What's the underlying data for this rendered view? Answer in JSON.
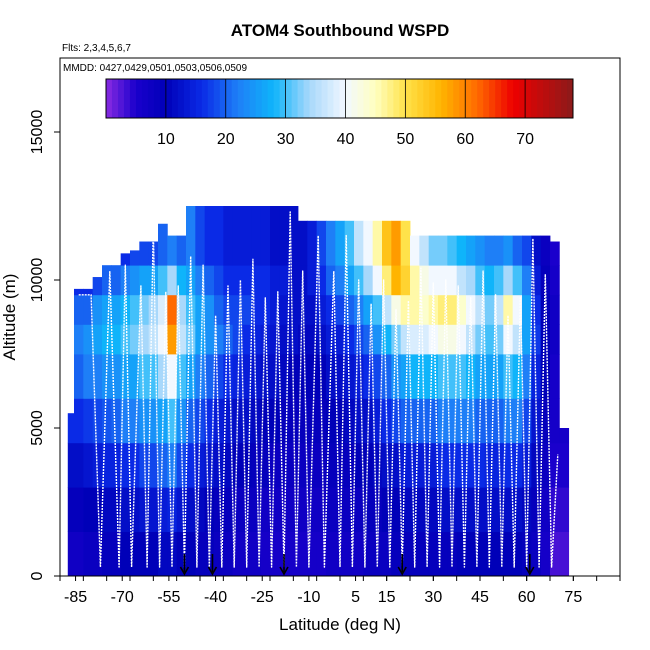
{
  "chart_data": {
    "type": "heatmap",
    "title": "ATOM4 Southbound WSPD",
    "flights_text": "Flts: 2,3,4,5,6,7",
    "dates_text": "MMDD: 0427,0429,0501,0503,0506,0509",
    "xlabel": "Latitude (deg N)",
    "ylabel": "Altitude (m)",
    "xlim": [
      -90,
      90
    ],
    "ylim": [
      0,
      17500
    ],
    "x_ticks": [
      -85,
      -70,
      -55,
      -40,
      -25,
      -10,
      5,
      15,
      30,
      45,
      60,
      75
    ],
    "x_tick_labels": [
      "-85",
      "-70",
      "-55",
      "-40",
      "-25",
      "-10",
      "5",
      "15",
      "30",
      "45",
      "60",
      "75"
    ],
    "y_ticks": [
      0,
      5000,
      10000,
      15000
    ],
    "y_tick_labels": [
      "0",
      "5000",
      "10000",
      "15000"
    ],
    "colorbar": {
      "range": [
        0,
        78
      ],
      "ticks": [
        10,
        20,
        30,
        40,
        50,
        60,
        70
      ],
      "tick_labels": [
        "10",
        "20",
        "30",
        "40",
        "50",
        "60",
        "70"
      ],
      "stops": [
        {
          "v": 0,
          "c": "#8a2be2"
        },
        {
          "v": 5,
          "c": "#1a00cc"
        },
        {
          "v": 10,
          "c": "#0000b8"
        },
        {
          "v": 16,
          "c": "#0a2ae6"
        },
        {
          "v": 22,
          "c": "#1e7ff7"
        },
        {
          "v": 28,
          "c": "#0fb4fa"
        },
        {
          "v": 34,
          "c": "#a8d8fb"
        },
        {
          "v": 40,
          "c": "#f2f8ff"
        },
        {
          "v": 45,
          "c": "#ffffc0"
        },
        {
          "v": 50,
          "c": "#ffe24a"
        },
        {
          "v": 56,
          "c": "#ffb400"
        },
        {
          "v": 62,
          "c": "#ff6a00"
        },
        {
          "v": 68,
          "c": "#ee0000"
        },
        {
          "v": 78,
          "c": "#8b1a1a"
        }
      ]
    },
    "columns": [
      {
        "lat": -86,
        "top": 5500,
        "v": [
          7,
          9,
          12,
          16,
          20,
          22,
          20,
          16,
          12
        ]
      },
      {
        "lat": -84,
        "top": 9700,
        "v": [
          7,
          9,
          12,
          16,
          20,
          22,
          20,
          16,
          12
        ]
      },
      {
        "lat": -81,
        "top": 9700,
        "v": [
          8,
          10,
          13,
          17,
          22,
          24,
          20,
          16,
          12
        ]
      },
      {
        "lat": -78,
        "top": 10100,
        "v": [
          8,
          10,
          14,
          18,
          22,
          26,
          24,
          18,
          14
        ]
      },
      {
        "lat": -75,
        "top": 10500,
        "v": [
          9,
          11,
          15,
          19,
          24,
          28,
          26,
          20,
          15
        ]
      },
      {
        "lat": -72,
        "top": 10500,
        "v": [
          9,
          11,
          15,
          20,
          24,
          28,
          26,
          20,
          15
        ]
      },
      {
        "lat": -69,
        "top": 10900,
        "v": [
          10,
          12,
          16,
          22,
          26,
          30,
          28,
          22,
          16
        ]
      },
      {
        "lat": -66,
        "top": 11000,
        "v": [
          10,
          12,
          16,
          22,
          26,
          32,
          30,
          24,
          18
        ]
      },
      {
        "lat": -63,
        "top": 11300,
        "v": [
          10,
          13,
          18,
          24,
          30,
          34,
          32,
          26,
          18
        ]
      },
      {
        "lat": -60,
        "top": 11300,
        "v": [
          10,
          13,
          18,
          24,
          30,
          36,
          34,
          26,
          18
        ]
      },
      {
        "lat": -57,
        "top": 11900,
        "v": [
          11,
          14,
          20,
          26,
          34,
          40,
          38,
          30,
          20
        ]
      },
      {
        "lat": -54,
        "top": 11500,
        "v": [
          11,
          15,
          22,
          30,
          40,
          58,
          62,
          34,
          22
        ]
      },
      {
        "lat": -51,
        "top": 11500,
        "v": [
          10,
          13,
          18,
          24,
          30,
          36,
          34,
          28,
          20
        ]
      },
      {
        "lat": -48,
        "top": 12500,
        "v": [
          10,
          12,
          16,
          20,
          26,
          32,
          30,
          26,
          22
        ]
      },
      {
        "lat": -45,
        "top": 12500,
        "v": [
          9,
          11,
          14,
          18,
          22,
          26,
          26,
          22,
          18
        ]
      },
      {
        "lat": -42,
        "top": 12500,
        "v": [
          9,
          10,
          13,
          16,
          20,
          24,
          24,
          20,
          16
        ]
      },
      {
        "lat": -39,
        "top": 12500,
        "v": [
          8,
          9,
          12,
          14,
          18,
          22,
          20,
          18,
          16
        ]
      },
      {
        "lat": -36,
        "top": 12500,
        "v": [
          8,
          9,
          11,
          13,
          16,
          20,
          18,
          16,
          14
        ]
      },
      {
        "lat": -33,
        "top": 12500,
        "v": [
          7,
          8,
          10,
          12,
          15,
          18,
          18,
          16,
          14
        ]
      },
      {
        "lat": -30,
        "top": 12500,
        "v": [
          7,
          8,
          10,
          12,
          14,
          16,
          18,
          16,
          14
        ]
      },
      {
        "lat": -27,
        "top": 12500,
        "v": [
          7,
          8,
          9,
          11,
          13,
          15,
          16,
          16,
          14
        ]
      },
      {
        "lat": -24,
        "top": 12500,
        "v": [
          6,
          7,
          9,
          10,
          12,
          14,
          16,
          16,
          14
        ]
      },
      {
        "lat": -21,
        "top": 12500,
        "v": [
          6,
          7,
          8,
          10,
          12,
          13,
          14,
          14,
          12
        ]
      },
      {
        "lat": -18,
        "top": 12500,
        "v": [
          6,
          7,
          8,
          9,
          11,
          12,
          13,
          14,
          12
        ]
      },
      {
        "lat": -15,
        "top": 12500,
        "v": [
          6,
          7,
          8,
          9,
          10,
          12,
          12,
          12,
          12
        ]
      },
      {
        "lat": -12,
        "top": 12000,
        "v": [
          6,
          7,
          8,
          9,
          10,
          11,
          12,
          12,
          12
        ]
      },
      {
        "lat": -9,
        "top": 12000,
        "v": [
          6,
          7,
          8,
          9,
          10,
          11,
          12,
          14,
          14
        ]
      },
      {
        "lat": -6,
        "top": 12000,
        "v": [
          6,
          7,
          8,
          9,
          10,
          12,
          14,
          16,
          18
        ]
      },
      {
        "lat": -3,
        "top": 12000,
        "v": [
          7,
          8,
          9,
          10,
          12,
          14,
          16,
          20,
          22
        ]
      },
      {
        "lat": 0,
        "top": 12000,
        "v": [
          7,
          8,
          9,
          10,
          12,
          14,
          18,
          22,
          26
        ]
      },
      {
        "lat": 3,
        "top": 12000,
        "v": [
          7,
          8,
          9,
          11,
          13,
          16,
          20,
          26,
          30
        ]
      },
      {
        "lat": 6,
        "top": 12000,
        "v": [
          7,
          8,
          10,
          12,
          14,
          18,
          22,
          30,
          36
        ]
      },
      {
        "lat": 9,
        "top": 12000,
        "v": [
          8,
          9,
          10,
          12,
          16,
          20,
          26,
          34,
          40
        ]
      },
      {
        "lat": 12,
        "top": 12000,
        "v": [
          8,
          9,
          11,
          14,
          18,
          24,
          30,
          40,
          46
        ]
      },
      {
        "lat": 15,
        "top": 12000,
        "v": [
          8,
          10,
          12,
          16,
          20,
          28,
          36,
          48,
          54
        ]
      },
      {
        "lat": 18,
        "top": 12000,
        "v": [
          9,
          10,
          12,
          18,
          24,
          32,
          42,
          56,
          58
        ]
      },
      {
        "lat": 21,
        "top": 12000,
        "v": [
          9,
          11,
          14,
          20,
          26,
          36,
          46,
          52,
          50
        ]
      },
      {
        "lat": 24,
        "top": 11500,
        "v": [
          9,
          11,
          14,
          20,
          28,
          38,
          46,
          46,
          40
        ]
      },
      {
        "lat": 27,
        "top": 11500,
        "v": [
          9,
          11,
          14,
          20,
          28,
          38,
          44,
          42,
          36
        ]
      },
      {
        "lat": 30,
        "top": 11500,
        "v": [
          9,
          11,
          14,
          20,
          28,
          40,
          46,
          40,
          32
        ]
      },
      {
        "lat": 33,
        "top": 11500,
        "v": [
          9,
          12,
          16,
          22,
          30,
          42,
          48,
          40,
          32
        ]
      },
      {
        "lat": 36,
        "top": 11500,
        "v": [
          9,
          12,
          16,
          22,
          30,
          42,
          48,
          40,
          30
        ]
      },
      {
        "lat": 39,
        "top": 11500,
        "v": [
          10,
          12,
          16,
          22,
          30,
          40,
          44,
          36,
          28
        ]
      },
      {
        "lat": 42,
        "top": 11500,
        "v": [
          10,
          12,
          16,
          22,
          28,
          36,
          40,
          34,
          26
        ]
      },
      {
        "lat": 45,
        "top": 11500,
        "v": [
          10,
          12,
          16,
          20,
          26,
          32,
          36,
          30,
          24
        ]
      },
      {
        "lat": 48,
        "top": 11500,
        "v": [
          10,
          12,
          15,
          20,
          26,
          30,
          32,
          28,
          22
        ]
      },
      {
        "lat": 51,
        "top": 11500,
        "v": [
          10,
          12,
          15,
          20,
          26,
          32,
          36,
          30,
          22
        ]
      },
      {
        "lat": 54,
        "top": 11500,
        "v": [
          10,
          12,
          16,
          22,
          30,
          40,
          46,
          34,
          24
        ]
      },
      {
        "lat": 57,
        "top": 11500,
        "v": [
          10,
          12,
          16,
          22,
          28,
          36,
          40,
          30,
          20
        ]
      },
      {
        "lat": 60,
        "top": 11500,
        "v": [
          9,
          11,
          14,
          18,
          22,
          26,
          26,
          22,
          18
        ]
      },
      {
        "lat": 63,
        "top": 11500,
        "v": [
          8,
          9,
          11,
          13,
          15,
          17,
          16,
          14,
          12
        ]
      },
      {
        "lat": 66,
        "top": 11500,
        "v": [
          6,
          7,
          8,
          9,
          10,
          10,
          10,
          9,
          8
        ]
      },
      {
        "lat": 69,
        "top": 11300,
        "v": [
          3,
          4,
          5,
          6,
          6,
          7,
          7,
          6,
          5
        ]
      },
      {
        "lat": 72,
        "top": 5000,
        "v": [
          3,
          4,
          5,
          6,
          6,
          7,
          7,
          6,
          5
        ]
      }
    ],
    "altitude_bins": [
      0,
      1500,
      3000,
      4500,
      6000,
      7500,
      8500,
      9500,
      10500,
      12500
    ],
    "flight_tracks": [
      {
        "name": "flight-track",
        "lat": [
          -84,
          -80,
          -77,
          -74,
          -71,
          -69,
          -67,
          -64,
          -62,
          -60,
          -58,
          -56,
          -54,
          -52,
          -50,
          -48,
          -46,
          -44,
          -42,
          -40,
          -38,
          -36,
          -34,
          -32,
          -30,
          -28,
          -26,
          -24,
          -22,
          -20,
          -18,
          -16,
          -14,
          -12,
          -10,
          -7,
          -5,
          -2,
          0,
          2,
          4,
          6,
          8,
          10,
          12,
          14,
          16,
          18,
          20,
          22,
          24,
          26,
          28,
          30,
          32,
          34,
          36,
          38,
          40,
          42,
          44,
          46,
          48,
          50,
          52,
          54,
          56,
          58,
          60,
          62,
          64,
          66,
          68,
          70
        ],
        "alt": [
          9500,
          9500,
          300,
          10300,
          300,
          10500,
          300,
          9800,
          300,
          11800,
          300,
          9600,
          300,
          9800,
          300,
          10800,
          300,
          10500,
          300,
          8800,
          300,
          9800,
          300,
          10000,
          300,
          10700,
          300,
          9400,
          300,
          9600,
          300,
          12300,
          300,
          10300,
          300,
          11500,
          300,
          10300,
          300,
          11500,
          300,
          10000,
          300,
          9200,
          300,
          10000,
          300,
          9000,
          300,
          9300,
          300,
          10400,
          300,
          9900,
          300,
          10000,
          300,
          9800,
          300,
          9400,
          300,
          10300,
          300,
          9500,
          300,
          8800,
          300,
          9400,
          300,
          11400,
          300,
          10200,
          300,
          4100
        ]
      }
    ],
    "arrow_markers_lat": [
      -50,
      -41,
      -18,
      20,
      61
    ]
  }
}
